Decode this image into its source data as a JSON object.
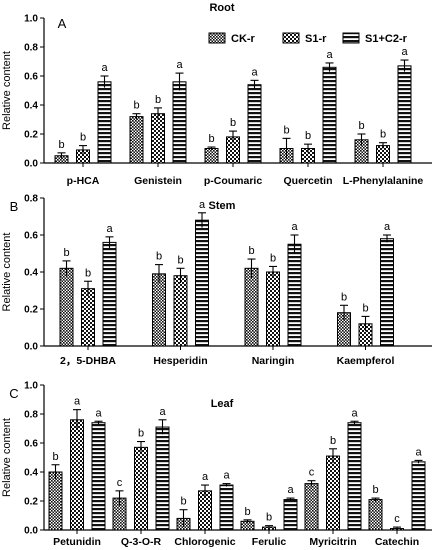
{
  "figure": {
    "ylabel": "Relative content",
    "legend": [
      "CK-r",
      "S1-r",
      "S1+C2-r"
    ]
  },
  "chart_data": [
    {
      "type": "bar",
      "panel": "A",
      "title": "Root",
      "ylabel": "Relative content",
      "ylim": [
        0,
        1.0
      ],
      "yticks": [
        "0.0",
        "0.2",
        "0.4",
        "0.6",
        "0.8",
        "1.0"
      ],
      "legend_position": "top-right",
      "categories": [
        "p-HCA",
        "Genistein",
        "p-Coumaric",
        "Quercetin",
        "L-Phenylalanine"
      ],
      "series": [
        {
          "name": "CK-r",
          "values": [
            0.05,
            0.32,
            0.1,
            0.1,
            0.16
          ],
          "errors": [
            0.02,
            0.02,
            0.01,
            0.07,
            0.04
          ],
          "labels": [
            "b",
            "b",
            "b",
            "b",
            "b"
          ]
        },
        {
          "name": "S1-r",
          "values": [
            0.09,
            0.34,
            0.18,
            0.1,
            0.12
          ],
          "errors": [
            0.03,
            0.04,
            0.04,
            0.03,
            0.02
          ],
          "labels": [
            "b",
            "b",
            "b",
            "b",
            "b"
          ]
        },
        {
          "name": "S1+C2-r",
          "values": [
            0.56,
            0.56,
            0.54,
            0.66,
            0.67
          ],
          "errors": [
            0.04,
            0.06,
            0.03,
            0.03,
            0.04
          ],
          "labels": [
            "a",
            "a",
            "a",
            "a",
            "a"
          ]
        }
      ]
    },
    {
      "type": "bar",
      "panel": "B",
      "title": "Stem",
      "ylabel": "Relative content",
      "ylim": [
        0,
        0.8
      ],
      "yticks": [
        "0.0",
        "0.2",
        "0.4",
        "0.6",
        "0.8"
      ],
      "categories": [
        "2，5-DHBA",
        "Hesperidin",
        "Naringin",
        "Kaempferol"
      ],
      "series": [
        {
          "name": "CK-r",
          "values": [
            0.42,
            0.39,
            0.42,
            0.18
          ],
          "errors": [
            0.04,
            0.05,
            0.05,
            0.04
          ],
          "labels": [
            "b",
            "b",
            "b",
            "b"
          ]
        },
        {
          "name": "S1-r",
          "values": [
            0.31,
            0.38,
            0.4,
            0.12
          ],
          "errors": [
            0.04,
            0.04,
            0.03,
            0.04
          ],
          "labels": [
            "b",
            "b",
            "b",
            "b"
          ]
        },
        {
          "name": "S1+C2-r",
          "values": [
            0.56,
            0.68,
            0.55,
            0.58
          ],
          "errors": [
            0.03,
            0.04,
            0.05,
            0.02
          ],
          "labels": [
            "a",
            "a",
            "a",
            "a"
          ]
        }
      ]
    },
    {
      "type": "bar",
      "panel": "C",
      "title": "Leaf",
      "ylabel": "Relative content",
      "ylim": [
        0,
        1.0
      ],
      "yticks": [
        "0.0",
        "0.2",
        "0.4",
        "0.6",
        "0.8",
        "1.0"
      ],
      "categories": [
        "Petunidin",
        "Q-3-O-R",
        "Chlorogenic",
        "Ferulic",
        "Myricitrin",
        "Catechin"
      ],
      "series": [
        {
          "name": "CK-r",
          "values": [
            0.4,
            0.22,
            0.08,
            0.06,
            0.32,
            0.21
          ],
          "errors": [
            0.05,
            0.05,
            0.06,
            0.01,
            0.02,
            0.01
          ],
          "labels": [
            "b",
            "c",
            "b",
            "b",
            "c",
            "b"
          ]
        },
        {
          "name": "S1-r",
          "values": [
            0.76,
            0.57,
            0.27,
            0.02,
            0.51,
            0.01
          ],
          "errors": [
            0.07,
            0.04,
            0.04,
            0.01,
            0.05,
            0.01
          ],
          "labels": [
            "a",
            "b",
            "a",
            "b",
            "b",
            "c"
          ]
        },
        {
          "name": "S1+C2-r",
          "values": [
            0.74,
            0.71,
            0.31,
            0.21,
            0.74,
            0.47
          ],
          "errors": [
            0.01,
            0.05,
            0.01,
            0.01,
            0.01,
            0.01
          ],
          "labels": [
            "a",
            "a",
            "a",
            "a",
            "a",
            "a"
          ]
        }
      ]
    }
  ]
}
